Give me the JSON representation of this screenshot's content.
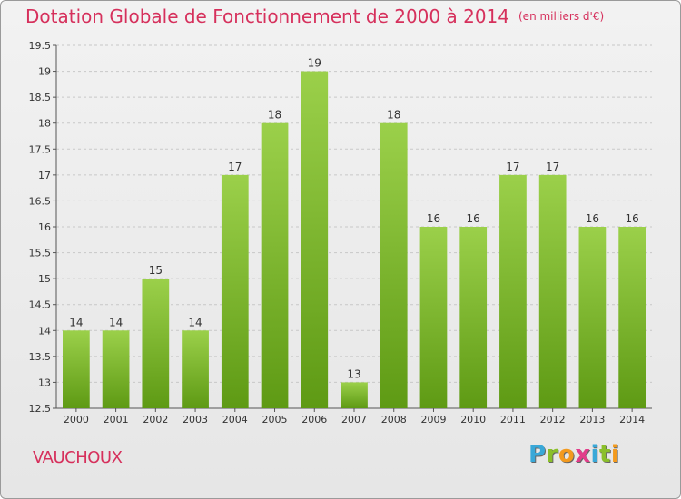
{
  "title": "Dotation Globale de Fonctionnement de 2000 à 2014",
  "unit_note": "(en milliers d'€)",
  "commune": "VAUCHOUX",
  "logo_text": "Proxiti",
  "colors": {
    "title": "#d6305c",
    "bar_light": "#9bd04a",
    "bar_dark": "#5e9a14",
    "grid": "#c8c8c8"
  },
  "chart_data": {
    "type": "bar",
    "title": "Dotation Globale de Fonctionnement de 2000 à 2014",
    "subtitle": "(en milliers d'€)",
    "xlabel": "",
    "ylabel": "",
    "categories": [
      "2000",
      "2001",
      "2002",
      "2003",
      "2004",
      "2005",
      "2006",
      "2007",
      "2008",
      "2009",
      "2010",
      "2011",
      "2012",
      "2013",
      "2014"
    ],
    "values": [
      14,
      14,
      15,
      14,
      17,
      18,
      19,
      13,
      18,
      16,
      16,
      17,
      17,
      16,
      16
    ],
    "data_labels": [
      "14",
      "14",
      "15",
      "14",
      "17",
      "18",
      "19",
      "13",
      "18",
      "16",
      "16",
      "17",
      "17",
      "16",
      "16"
    ],
    "ylim": [
      12.5,
      19.5
    ],
    "yticks": [
      12.5,
      13,
      13.5,
      14,
      14.5,
      15,
      15.5,
      16,
      16.5,
      17,
      17.5,
      18,
      18.5,
      19,
      19.5
    ],
    "ytick_labels": [
      "12.5",
      "13",
      "13.5",
      "14",
      "14.5",
      "15",
      "15.5",
      "16",
      "16.5",
      "17",
      "17.5",
      "18",
      "18.5",
      "19",
      "19.5"
    ],
    "grid": true,
    "legend": "none"
  }
}
